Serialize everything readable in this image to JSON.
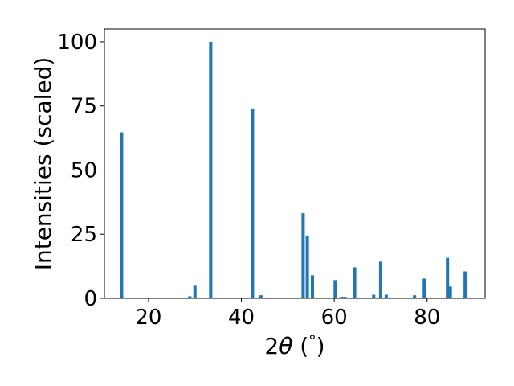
{
  "chart_data": {
    "type": "bar",
    "xlabel": "2θ (°)",
    "xlabel_parts": {
      "prefix": "2",
      "symbol": "θ",
      "open": " (",
      "degree": "°",
      "close": ")"
    },
    "ylabel": "Intensities (scaled)",
    "xlim": [
      10.5,
      92.5
    ],
    "ylim": [
      0,
      105
    ],
    "xticks": [
      20,
      40,
      60,
      80
    ],
    "yticks": [
      0,
      25,
      50,
      75,
      100
    ],
    "grid": false,
    "bar_color": "#1f77b4",
    "bar_width": 0.7,
    "series": [
      {
        "x": [
          14.2,
          28.9,
          30.0,
          33.4,
          42.4,
          44.2,
          53.3,
          54.2,
          55.3,
          60.2,
          61.6,
          62.3,
          64.4,
          68.5,
          70.0,
          71.2,
          77.3,
          79.4,
          84.4,
          85.0,
          86.4,
          88.2
        ],
        "values": [
          64.7,
          0.8,
          4.9,
          100,
          74,
          1.2,
          33.2,
          24.5,
          9.0,
          7.1,
          0.6,
          0.6,
          12.1,
          1.4,
          14.3,
          1.4,
          1.2,
          7.7,
          15.8,
          4.6,
          0.3,
          10.5
        ]
      }
    ]
  }
}
